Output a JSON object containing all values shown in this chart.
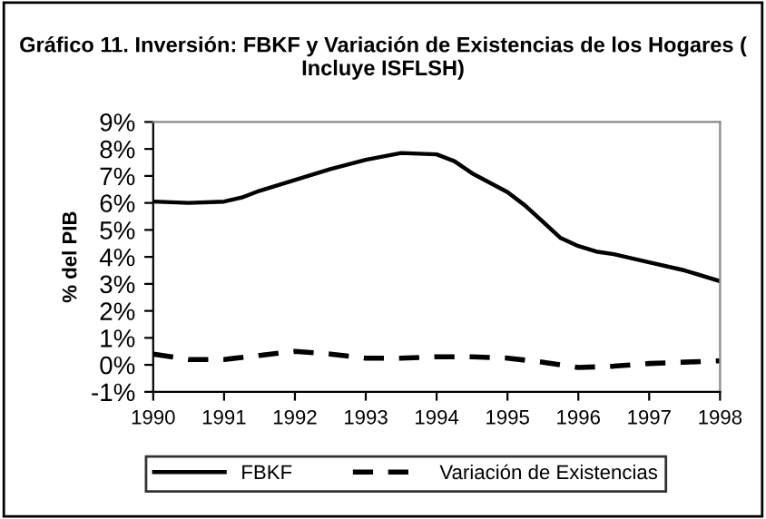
{
  "chart_data": {
    "type": "line",
    "title": "Gráfico 11. Inversión: FBKF y Variación de Existencias de los Hogares ( Incluye ISFLSH)",
    "ylabel": "% del PIB",
    "xlim": [
      1990,
      1998
    ],
    "xticks": [
      1990,
      1991,
      1992,
      1993,
      1994,
      1995,
      1996,
      1997,
      1998
    ],
    "ylim": [
      -1,
      9
    ],
    "yticks": [
      {
        "value": -1,
        "label": "-1%"
      },
      {
        "value": 0,
        "label": "0%"
      },
      {
        "value": 1,
        "label": "1%"
      },
      {
        "value": 2,
        "label": "2%"
      },
      {
        "value": 3,
        "label": "3%"
      },
      {
        "value": 4,
        "label": "4%"
      },
      {
        "value": 5,
        "label": "5%"
      },
      {
        "value": 6,
        "label": "6%"
      },
      {
        "value": 7,
        "label": "7%"
      },
      {
        "value": 8,
        "label": "8%"
      },
      {
        "value": 9,
        "label": "9%"
      }
    ],
    "grid": false,
    "legend": "bottom",
    "series": [
      {
        "name": "FBKF",
        "color": "#000000",
        "line_style": "solid",
        "x": [
          1990,
          1990.5,
          1991,
          1991.25,
          1991.5,
          1992,
          1992.5,
          1993,
          1993.5,
          1994,
          1994.25,
          1994.5,
          1995,
          1995.25,
          1995.5,
          1995.75,
          1996,
          1996.25,
          1996.5,
          1997,
          1997.5,
          1998
        ],
        "values": [
          6.05,
          6.0,
          6.05,
          6.2,
          6.45,
          6.85,
          7.25,
          7.6,
          7.85,
          7.8,
          7.55,
          7.1,
          6.4,
          5.9,
          5.3,
          4.7,
          4.4,
          4.2,
          4.1,
          3.8,
          3.5,
          3.1
        ]
      },
      {
        "name": "Variación de Existencias",
        "color": "#000000",
        "line_style": "dashed",
        "x": [
          1990,
          1990.5,
          1991,
          1991.5,
          1992,
          1992.5,
          1993,
          1993.5,
          1994,
          1994.5,
          1995,
          1995.5,
          1996,
          1996.5,
          1997,
          1997.5,
          1998
        ],
        "values": [
          0.4,
          0.2,
          0.2,
          0.35,
          0.5,
          0.4,
          0.25,
          0.25,
          0.3,
          0.3,
          0.25,
          0.1,
          -0.1,
          -0.05,
          0.05,
          0.1,
          0.15
        ]
      }
    ]
  }
}
